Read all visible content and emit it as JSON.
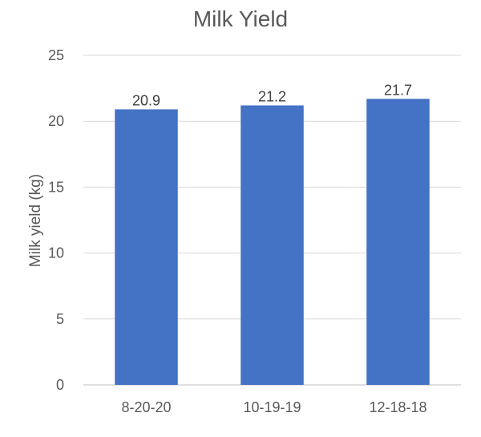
{
  "chart_data": {
    "type": "bar",
    "title": "Milk Yield",
    "xlabel": "",
    "ylabel": "Milk yield (kg)",
    "categories": [
      "8-20-20",
      "10-19-19",
      "12-18-18"
    ],
    "values": [
      20.9,
      21.2,
      21.7
    ],
    "data_labels": [
      "20.9",
      "21.2",
      "21.7"
    ],
    "ylim": [
      0,
      25
    ],
    "yticks": [
      0,
      5,
      10,
      15,
      20,
      25
    ],
    "grid": true,
    "legend": "none",
    "colors": {
      "bar": "#4472c4"
    }
  }
}
